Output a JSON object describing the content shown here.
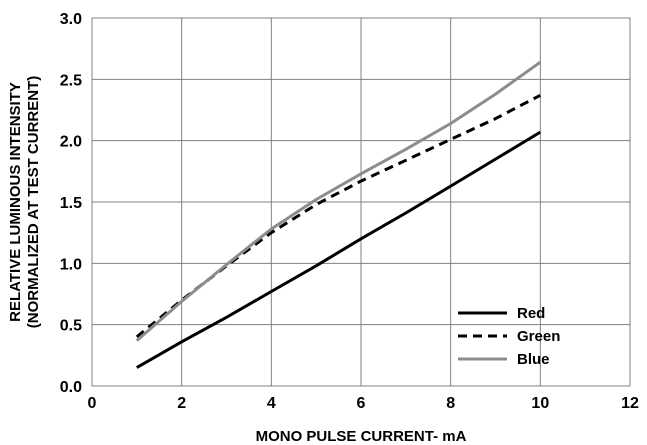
{
  "chart_data": {
    "type": "line",
    "title": "",
    "xlabel": "MONO PULSE CURRENT- mA",
    "ylabel_line1": "RELATIVE LUMINOUS INTENSITY",
    "ylabel_line2": "(NORMALIZED AT TEST CURRENT)",
    "xlim": [
      0,
      12
    ],
    "ylim": [
      0,
      3.0
    ],
    "x_ticks": [
      "0",
      "2",
      "4",
      "6",
      "8",
      "10",
      "12"
    ],
    "y_ticks": [
      "0.0",
      "0.5",
      "1.0",
      "1.5",
      "2.0",
      "2.5",
      "3.0"
    ],
    "grid": true,
    "legend_position": "lower-right",
    "series": [
      {
        "name": "Red",
        "color": "#000000",
        "dash": "solid",
        "x": [
          1,
          2,
          3,
          4,
          5,
          6,
          7,
          8,
          9,
          10
        ],
        "y": [
          0.15,
          0.36,
          0.56,
          0.77,
          0.98,
          1.2,
          1.41,
          1.63,
          1.85,
          2.07
        ]
      },
      {
        "name": "Green",
        "color": "#000000",
        "dash": "dashed",
        "x": [
          1,
          2,
          3,
          4,
          5,
          6,
          7,
          8,
          9,
          10
        ],
        "y": [
          0.4,
          0.7,
          0.98,
          1.25,
          1.48,
          1.67,
          1.84,
          2.01,
          2.18,
          2.37
        ]
      },
      {
        "name": "Blue",
        "color": "#8c8c8c",
        "dash": "solid",
        "x": [
          1,
          2,
          3,
          4,
          5,
          6,
          7,
          8,
          9,
          10
        ],
        "y": [
          0.37,
          0.69,
          0.99,
          1.28,
          1.52,
          1.73,
          1.93,
          2.14,
          2.38,
          2.64
        ]
      }
    ]
  }
}
